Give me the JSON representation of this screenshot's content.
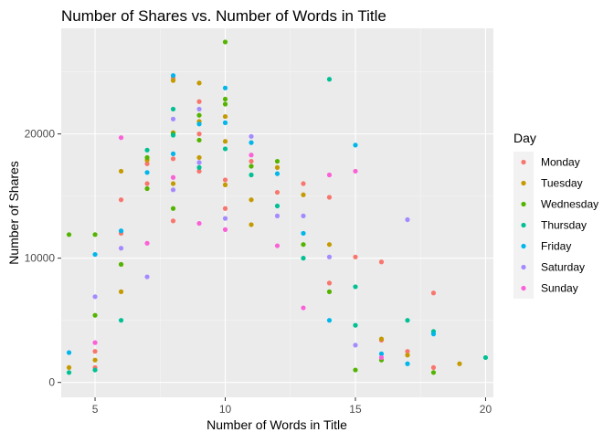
{
  "chart_data": {
    "type": "scatter",
    "title": "Number of Shares vs. Number of Words in Title",
    "xlabel": "Number of Words in Title",
    "ylabel": "Number of Shares",
    "xlim": [
      3.7,
      20.3
    ],
    "ylim": [
      -1200,
      28500
    ],
    "x_ticks": [
      5,
      10,
      15,
      20
    ],
    "x_tick_labels": [
      "5",
      "10",
      "15",
      "20"
    ],
    "y_ticks": [
      0,
      10000,
      20000
    ],
    "y_tick_labels": [
      "0",
      "10000",
      "20000"
    ],
    "grid": true,
    "legend_title": "Day",
    "legend_position": "right",
    "series": [
      {
        "name": "Monday",
        "color": "#F8766D",
        "points": [
          [
            5,
            1200
          ],
          [
            5,
            2500
          ],
          [
            6,
            14700
          ],
          [
            6,
            12000
          ],
          [
            6,
            9500
          ],
          [
            7,
            17600
          ],
          [
            7,
            16000
          ],
          [
            8,
            24500
          ],
          [
            8,
            18000
          ],
          [
            8,
            13000
          ],
          [
            9,
            22600
          ],
          [
            9,
            20000
          ],
          [
            9,
            17000
          ],
          [
            10,
            16300
          ],
          [
            10,
            14000
          ],
          [
            11,
            17800
          ],
          [
            12,
            15300
          ],
          [
            13,
            16000
          ],
          [
            14,
            14900
          ],
          [
            14,
            8000
          ],
          [
            15,
            10100
          ],
          [
            16,
            9700
          ],
          [
            18,
            7200
          ],
          [
            18,
            1200
          ],
          [
            16,
            3400
          ],
          [
            17,
            2500
          ]
        ]
      },
      {
        "name": "Tuesday",
        "color": "#C49A00",
        "points": [
          [
            4,
            1200
          ],
          [
            5,
            1800
          ],
          [
            6,
            17000
          ],
          [
            6,
            7300
          ],
          [
            7,
            17900
          ],
          [
            8,
            24300
          ],
          [
            8,
            20100
          ],
          [
            8,
            16000
          ],
          [
            9,
            24100
          ],
          [
            9,
            21000
          ],
          [
            9,
            18100
          ],
          [
            10,
            21400
          ],
          [
            10,
            19400
          ],
          [
            10,
            15900
          ],
          [
            11,
            14700
          ],
          [
            11,
            12700
          ],
          [
            12,
            17300
          ],
          [
            13,
            15100
          ],
          [
            14,
            11100
          ],
          [
            16,
            3500
          ],
          [
            17,
            2200
          ],
          [
            19,
            1500
          ]
        ]
      },
      {
        "name": "Wednesday",
        "color": "#53B400",
        "points": [
          [
            4,
            11900
          ],
          [
            5,
            11900
          ],
          [
            5,
            5400
          ],
          [
            6,
            9500
          ],
          [
            7,
            15600
          ],
          [
            7,
            18100
          ],
          [
            8,
            20000
          ],
          [
            8,
            14000
          ],
          [
            9,
            21500
          ],
          [
            9,
            19500
          ],
          [
            10,
            27400
          ],
          [
            10,
            22800
          ],
          [
            10,
            22400
          ],
          [
            11,
            17400
          ],
          [
            12,
            17800
          ],
          [
            13,
            11100
          ],
          [
            14,
            7300
          ],
          [
            18,
            800
          ],
          [
            16,
            1800
          ],
          [
            15,
            1000
          ]
        ]
      },
      {
        "name": "Thursday",
        "color": "#00C094",
        "points": [
          [
            4,
            800
          ],
          [
            5,
            1000
          ],
          [
            6,
            5000
          ],
          [
            7,
            18700
          ],
          [
            8,
            22000
          ],
          [
            8,
            19900
          ],
          [
            9,
            17300
          ],
          [
            10,
            18800
          ],
          [
            11,
            16700
          ],
          [
            12,
            14200
          ],
          [
            13,
            10000
          ],
          [
            14,
            24400
          ],
          [
            15,
            7700
          ],
          [
            15,
            4600
          ],
          [
            17,
            5000
          ],
          [
            18,
            4100
          ],
          [
            20,
            2000
          ]
        ]
      },
      {
        "name": "Friday",
        "color": "#00B6EB",
        "points": [
          [
            4,
            2400
          ],
          [
            5,
            10300
          ],
          [
            6,
            12200
          ],
          [
            7,
            16900
          ],
          [
            8,
            24700
          ],
          [
            8,
            18400
          ],
          [
            9,
            20800
          ],
          [
            10,
            23700
          ],
          [
            10,
            20900
          ],
          [
            11,
            19300
          ],
          [
            12,
            16800
          ],
          [
            13,
            12000
          ],
          [
            14,
            5000
          ],
          [
            15,
            19100
          ],
          [
            16,
            2300
          ],
          [
            17,
            1500
          ],
          [
            18,
            3900
          ]
        ]
      },
      {
        "name": "Saturday",
        "color": "#A58AFF",
        "points": [
          [
            5,
            6900
          ],
          [
            6,
            10800
          ],
          [
            7,
            8500
          ],
          [
            8,
            21200
          ],
          [
            8,
            15500
          ],
          [
            9,
            22000
          ],
          [
            9,
            17700
          ],
          [
            10,
            13200
          ],
          [
            11,
            19800
          ],
          [
            12,
            13400
          ],
          [
            13,
            13400
          ],
          [
            14,
            10100
          ],
          [
            17,
            13100
          ],
          [
            15,
            3000
          ]
        ]
      },
      {
        "name": "Sunday",
        "color": "#FB61D7",
        "points": [
          [
            5,
            3200
          ],
          [
            6,
            19700
          ],
          [
            7,
            11200
          ],
          [
            8,
            16500
          ],
          [
            9,
            12800
          ],
          [
            10,
            12300
          ],
          [
            11,
            18300
          ],
          [
            12,
            11000
          ],
          [
            14,
            16700
          ],
          [
            15,
            17000
          ],
          [
            13,
            6000
          ],
          [
            16,
            2000
          ]
        ]
      }
    ]
  }
}
